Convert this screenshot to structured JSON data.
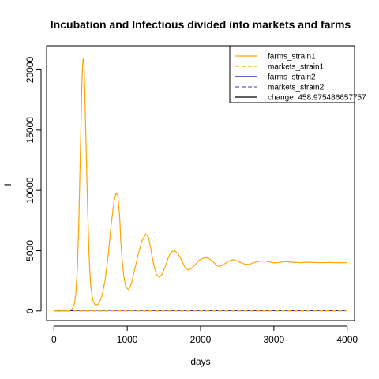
{
  "chart_data": {
    "type": "line",
    "title": "Incubation and Infectious divided into markets and farms",
    "xlabel": "days",
    "ylabel": "I",
    "xlim": [
      -100,
      4100
    ],
    "ylim": [
      -800,
      22000
    ],
    "xticks": [
      0,
      1000,
      2000,
      3000,
      4000
    ],
    "yticks": [
      0,
      5000,
      10000,
      15000,
      20000
    ],
    "legend_position": "top-right",
    "series": [
      {
        "name": "farms_strain1",
        "color": "#FFA500",
        "style": "solid",
        "x": [
          0,
          100,
          200,
          250,
          280,
          300,
          320,
          340,
          360,
          380,
          390,
          400,
          410,
          420,
          440,
          460,
          480,
          500,
          530,
          560,
          600,
          650,
          700,
          740,
          780,
          820,
          850,
          870,
          890,
          900,
          910,
          930,
          950,
          980,
          1020,
          1060,
          1100,
          1150,
          1200,
          1250,
          1290,
          1320,
          1340,
          1360,
          1380,
          1400,
          1440,
          1480,
          1520,
          1560,
          1600,
          1650,
          1700,
          1750,
          1780,
          1800,
          1830,
          1870,
          1920,
          1980,
          2050,
          2100,
          2150,
          2200,
          2230,
          2260,
          2300,
          2350,
          2400,
          2450,
          2500,
          2550,
          2600,
          2650,
          2680,
          2720,
          2780,
          2850,
          2920,
          2980,
          3050,
          3100,
          3150,
          3250,
          3350,
          3450,
          3550,
          3650,
          3750,
          3850,
          3950,
          4000
        ],
        "y": [
          0,
          0,
          20,
          150,
          600,
          1500,
          3500,
          7500,
          13000,
          18500,
          20300,
          21000,
          20400,
          18500,
          13500,
          8500,
          4500,
          2200,
          900,
          520,
          520,
          1100,
          2600,
          4600,
          7100,
          9100,
          9800,
          9600,
          8400,
          7400,
          6000,
          4300,
          3000,
          2000,
          1750,
          2300,
          3400,
          4700,
          5800,
          6400,
          6100,
          5200,
          4500,
          3900,
          3400,
          3000,
          2800,
          3100,
          3700,
          4400,
          4900,
          5000,
          4700,
          4100,
          3700,
          3500,
          3400,
          3500,
          3800,
          4200,
          4400,
          4400,
          4200,
          3900,
          3750,
          3700,
          3800,
          4000,
          4200,
          4250,
          4150,
          4000,
          3900,
          3850,
          3900,
          4000,
          4100,
          4150,
          4100,
          4000,
          4000,
          4050,
          4100,
          4050,
          4000,
          4050,
          4020,
          4000,
          4030,
          4010,
          4000,
          4020
        ]
      },
      {
        "name": "markets_strain1",
        "color": "#FFA500",
        "style": "dashed",
        "x": [
          0,
          1000,
          2000,
          3000,
          4000
        ],
        "y": [
          10,
          10,
          10,
          10,
          10
        ]
      },
      {
        "name": "farms_strain2",
        "color": "#0000CD",
        "style": "solid",
        "x": [
          0,
          200,
          400,
          800,
          1500,
          2500,
          4000
        ],
        "y": [
          10,
          20,
          60,
          50,
          40,
          30,
          30
        ]
      },
      {
        "name": "markets_strain2",
        "color": "#6A5ACD",
        "style": "dashed",
        "x": [
          0,
          1000,
          2000,
          3000,
          4000
        ],
        "y": [
          5,
          5,
          5,
          5,
          5
        ]
      }
    ],
    "legend": [
      {
        "label": "farms_strain1",
        "color": "#FFA500",
        "style": "solid"
      },
      {
        "label": "markets_strain1",
        "color": "#FFA500",
        "style": "dashed"
      },
      {
        "label": "farms_strain2",
        "color": "#0000CD",
        "style": "solid"
      },
      {
        "label": "markets_strain2",
        "color": "#6A5ACD",
        "style": "dashed"
      },
      {
        "label": "change: 458.975486657757",
        "color": "#000000",
        "style": "solid"
      }
    ]
  }
}
